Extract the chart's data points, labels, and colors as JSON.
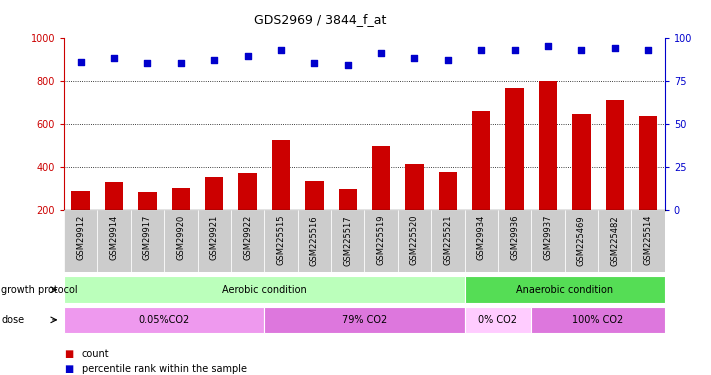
{
  "title": "GDS2969 / 3844_f_at",
  "samples": [
    "GSM29912",
    "GSM29914",
    "GSM29917",
    "GSM29920",
    "GSM29921",
    "GSM29922",
    "GSM225515",
    "GSM225516",
    "GSM225517",
    "GSM225519",
    "GSM225520",
    "GSM225521",
    "GSM29934",
    "GSM29936",
    "GSM29937",
    "GSM225469",
    "GSM225482",
    "GSM225514"
  ],
  "counts": [
    290,
    330,
    283,
    300,
    352,
    370,
    525,
    335,
    298,
    498,
    415,
    375,
    658,
    768,
    800,
    645,
    712,
    638
  ],
  "percentile_ranks": [
    86,
    88,
    85,
    85,
    87,
    89,
    93,
    85,
    84,
    91,
    88,
    87,
    93,
    93,
    95,
    93,
    94,
    93
  ],
  "bar_color": "#cc0000",
  "dot_color": "#0000cc",
  "ylim_left": [
    200,
    1000
  ],
  "ylim_right": [
    0,
    100
  ],
  "yticks_left": [
    200,
    400,
    600,
    800,
    1000
  ],
  "yticks_right": [
    0,
    25,
    50,
    75,
    100
  ],
  "grid_values": [
    400,
    600,
    800
  ],
  "bar_width": 0.55,
  "dot_size": 14,
  "groups_growth": [
    {
      "label": "Aerobic condition",
      "start": 0,
      "end": 11,
      "color": "#bbffbb"
    },
    {
      "label": "Anaerobic condition",
      "start": 12,
      "end": 17,
      "color": "#55dd55"
    }
  ],
  "groups_dose": [
    {
      "label": "0.05%CO2",
      "start": 0,
      "end": 5,
      "color": "#ee99ee"
    },
    {
      "label": "79% CO2",
      "start": 6,
      "end": 11,
      "color": "#dd77dd"
    },
    {
      "label": "0% CO2",
      "start": 12,
      "end": 13,
      "color": "#ffccff"
    },
    {
      "label": "100% CO2",
      "start": 14,
      "end": 17,
      "color": "#dd77dd"
    }
  ],
  "legend_items": [
    {
      "label": "count",
      "color": "#cc0000"
    },
    {
      "label": "percentile rank within the sample",
      "color": "#0000cc"
    }
  ],
  "title_fontsize": 9,
  "tick_fontsize": 6,
  "label_fontsize": 7,
  "annot_fontsize": 7
}
